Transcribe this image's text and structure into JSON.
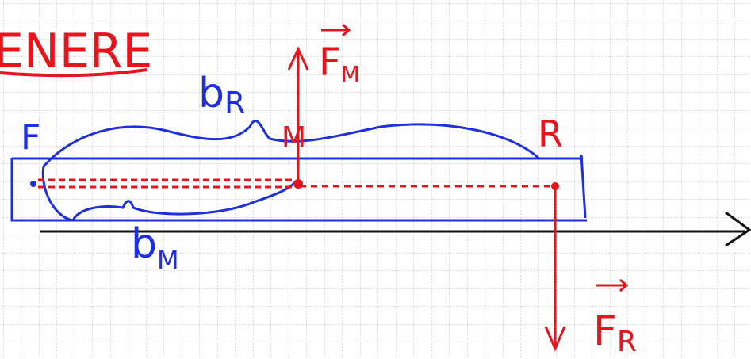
{
  "title": "ENERE",
  "nodes": [
    {
      "label": "F"
    },
    {
      "label": "M"
    },
    {
      "label": "R"
    }
  ],
  "arms": [
    {
      "label": "b",
      "sub": "R"
    },
    {
      "label": "b",
      "sub": "M"
    }
  ],
  "forces": [
    {
      "label": "F",
      "sub": "M"
    },
    {
      "label": "F",
      "sub": "R"
    }
  ]
}
